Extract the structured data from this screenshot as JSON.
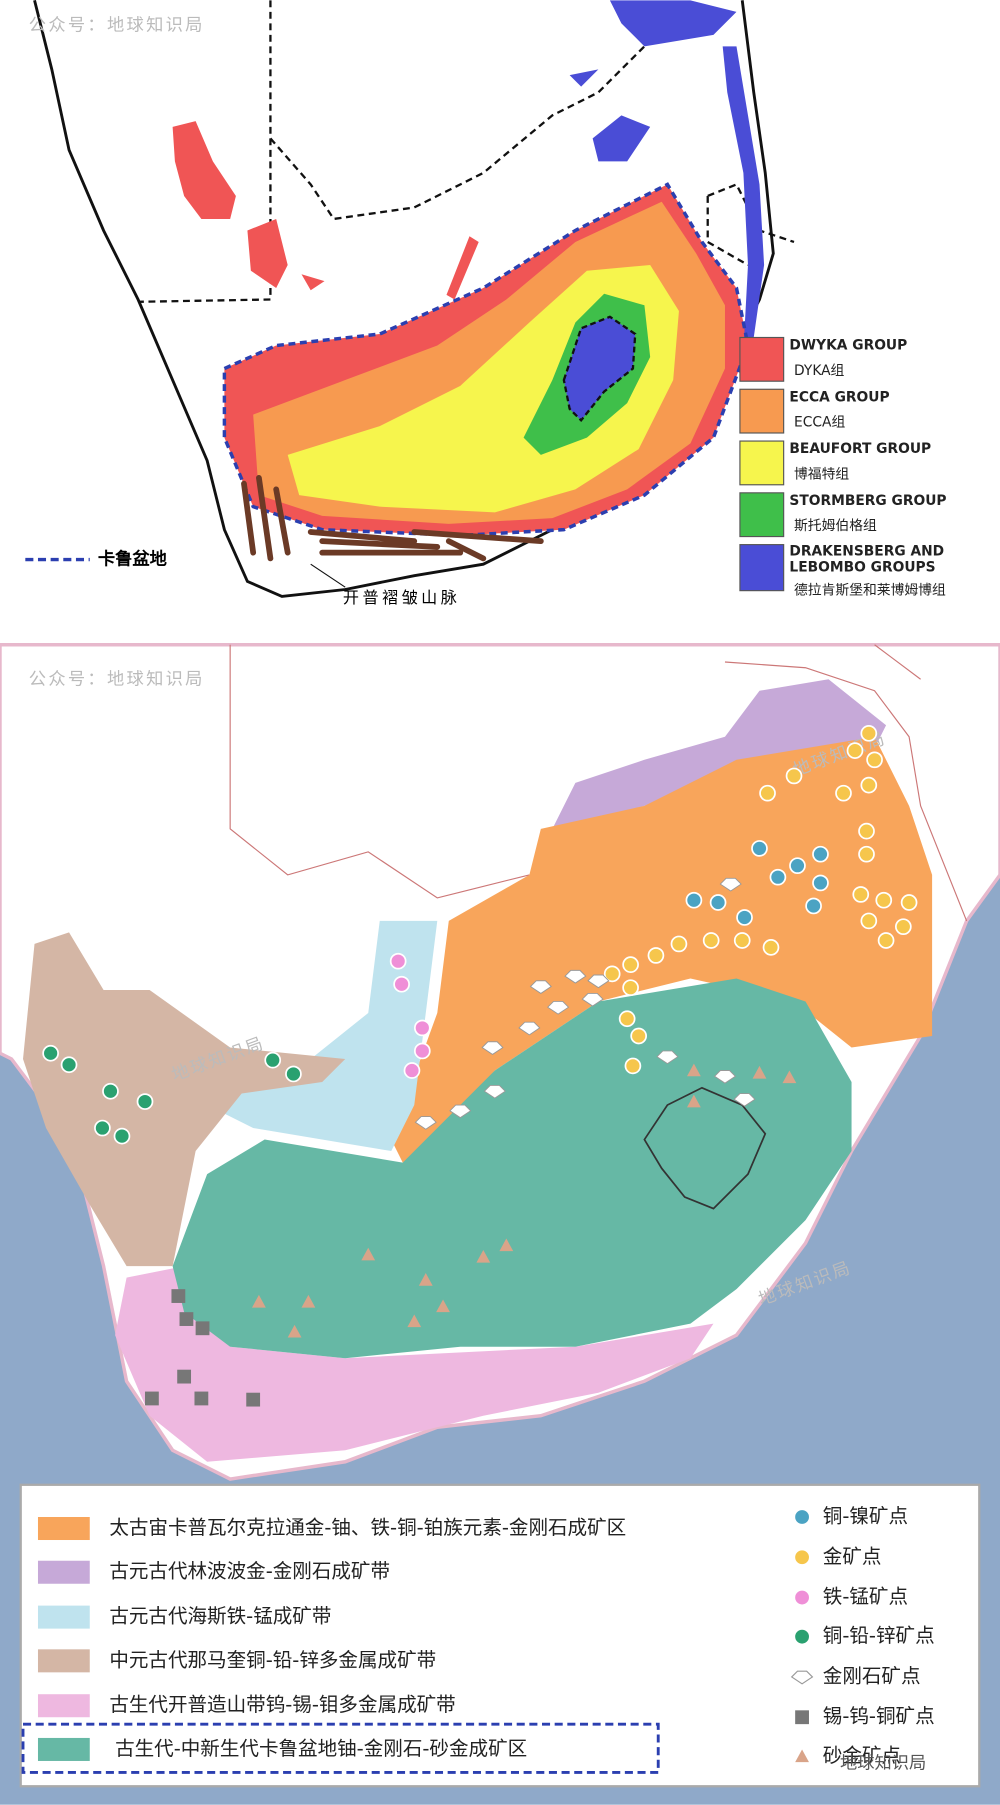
{
  "top_map": {
    "watermark": "公众号：地球知识局",
    "basin_label": "卡鲁盆地",
    "fold_label": "开普褶皱山脉",
    "legend": [
      {
        "en": "DWYKA GROUP",
        "zh": "DYKA组"
      },
      {
        "en": "ECCA GROUP",
        "zh": "ECCA组"
      },
      {
        "en": "BEAUFORT GROUP",
        "zh": "博福特组"
      },
      {
        "en": "STORMBERG GROUP",
        "zh": "斯托姆伯格组"
      },
      {
        "en": [
          "DRAKENSBERG AND",
          "LEBOMBO GROUPS"
        ],
        "zh": "德拉肯斯堡和莱博姆博组"
      }
    ]
  },
  "bottom_map": {
    "watermark": "公众号：地球知识局",
    "stamp": "地球知识局",
    "zones": [
      "太古宙卡普瓦尔克拉通金-铀、铁-铜-铂族元素-金刚石成矿区",
      "古元古代林波波金-金刚石成矿带",
      "古元古代海斯铁-锰成矿带",
      "中元古代那马奎铜-铅-锌多金属成矿带",
      "古生代开普造山带钨-锡-钼多金属成矿带",
      "古生代-中新生代卡鲁盆地铀-金刚石-砂金成矿区"
    ],
    "points": [
      "铜-镍矿点",
      "金矿点",
      "铁-锰矿点",
      "铜-铅-锌矿点",
      "金刚石矿点",
      "锡-钨-铜矿点",
      "砂金矿点"
    ]
  },
  "footer_watermark": "地球知识局"
}
